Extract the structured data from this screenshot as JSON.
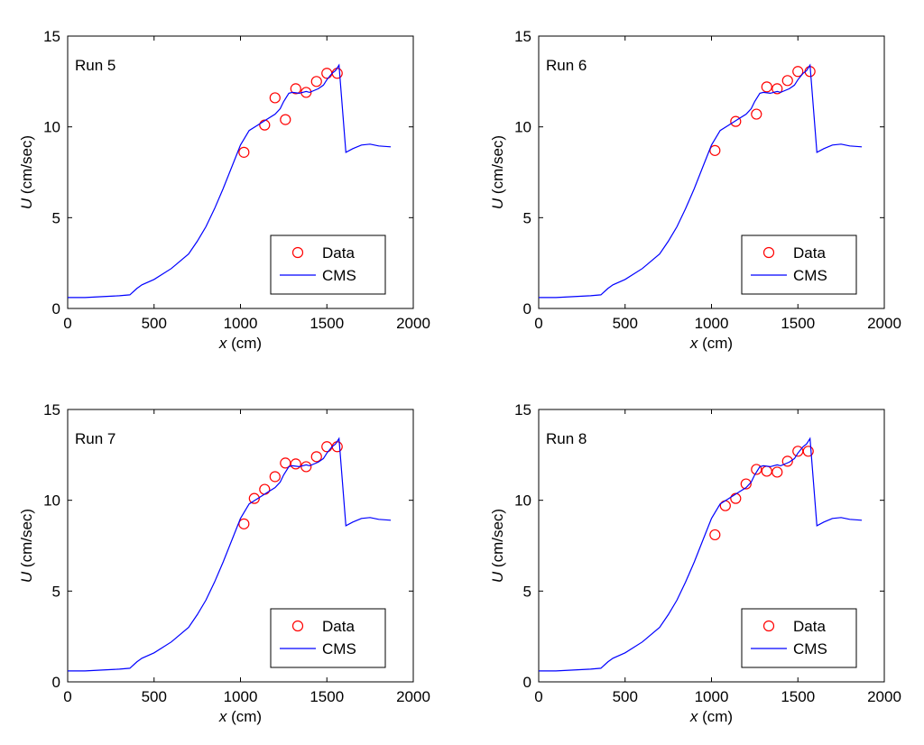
{
  "legend": {
    "data_label": "Data",
    "cms_label": "CMS"
  },
  "axis": {
    "xlabel_var": "x",
    "xlabel_unit": " (cm)",
    "ylabel_var": "U",
    "ylabel_unit": " (cm/sec)"
  },
  "colors": {
    "data": "#ff0000",
    "cms": "#0000ff",
    "axes": "#000000",
    "background": "#ffffff"
  },
  "chart_data": [
    {
      "type": "line",
      "title": "Run 5",
      "xlim": [
        0,
        2000
      ],
      "ylim": [
        0,
        15
      ],
      "xticks": [
        0,
        500,
        1000,
        1500,
        2000
      ],
      "yticks": [
        0,
        5,
        10,
        15
      ],
      "xlabel": "x (cm)",
      "ylabel": "U (cm/sec)",
      "grid": false,
      "legend_position": "bottom-right",
      "series": [
        {
          "name": "Data",
          "style": "markers",
          "marker": "open-circle",
          "x": [
            1020,
            1140,
            1200,
            1260,
            1320,
            1380,
            1440,
            1500,
            1560
          ],
          "y": [
            8.6,
            10.1,
            11.6,
            10.4,
            12.1,
            11.9,
            12.5,
            12.95,
            12.95
          ]
        },
        {
          "name": "CMS",
          "style": "line",
          "x": [
            0,
            100,
            200,
            300,
            360,
            400,
            430,
            500,
            600,
            700,
            750,
            800,
            850,
            900,
            950,
            1000,
            1050,
            1100,
            1150,
            1200,
            1230,
            1250,
            1280,
            1300,
            1340,
            1380,
            1400,
            1450,
            1480,
            1500,
            1530,
            1550,
            1570,
            1590,
            1610,
            1650,
            1700,
            1750,
            1800,
            1870
          ],
          "y": [
            0.6,
            0.6,
            0.65,
            0.7,
            0.75,
            1.1,
            1.3,
            1.6,
            2.2,
            3.0,
            3.7,
            4.5,
            5.5,
            6.6,
            7.8,
            9.0,
            9.8,
            10.1,
            10.4,
            10.7,
            11.0,
            11.4,
            11.85,
            11.9,
            11.85,
            11.95,
            11.9,
            12.1,
            12.3,
            12.6,
            12.95,
            13.1,
            13.4,
            11.0,
            8.6,
            8.8,
            9.0,
            9.05,
            8.95,
            8.9
          ]
        }
      ]
    },
    {
      "type": "line",
      "title": "Run 6",
      "xlim": [
        0,
        2000
      ],
      "ylim": [
        0,
        15
      ],
      "xticks": [
        0,
        500,
        1000,
        1500,
        2000
      ],
      "yticks": [
        0,
        5,
        10,
        15
      ],
      "xlabel": "x (cm)",
      "ylabel": "U (cm/sec)",
      "grid": false,
      "legend_position": "bottom-right",
      "series": [
        {
          "name": "Data",
          "style": "markers",
          "marker": "open-circle",
          "x": [
            1020,
            1140,
            1260,
            1320,
            1380,
            1440,
            1500,
            1570
          ],
          "y": [
            8.7,
            10.3,
            10.7,
            12.2,
            12.1,
            12.55,
            13.05,
            13.05
          ]
        },
        {
          "name": "CMS",
          "style": "line",
          "x": [
            0,
            100,
            200,
            300,
            360,
            400,
            430,
            500,
            600,
            700,
            750,
            800,
            850,
            900,
            950,
            1000,
            1050,
            1100,
            1150,
            1200,
            1230,
            1250,
            1280,
            1300,
            1340,
            1380,
            1400,
            1450,
            1480,
            1500,
            1530,
            1550,
            1570,
            1590,
            1610,
            1650,
            1700,
            1750,
            1800,
            1870
          ],
          "y": [
            0.6,
            0.6,
            0.65,
            0.7,
            0.75,
            1.1,
            1.3,
            1.6,
            2.2,
            3.0,
            3.7,
            4.5,
            5.5,
            6.6,
            7.8,
            9.0,
            9.8,
            10.1,
            10.4,
            10.7,
            11.0,
            11.4,
            11.85,
            11.9,
            11.85,
            11.95,
            11.9,
            12.1,
            12.3,
            12.6,
            12.95,
            13.1,
            13.4,
            11.0,
            8.6,
            8.8,
            9.0,
            9.05,
            8.95,
            8.9
          ]
        }
      ]
    },
    {
      "type": "line",
      "title": "Run 7",
      "xlim": [
        0,
        2000
      ],
      "ylim": [
        0,
        15
      ],
      "xticks": [
        0,
        500,
        1000,
        1500,
        2000
      ],
      "yticks": [
        0,
        5,
        10,
        15
      ],
      "xlabel": "x (cm)",
      "ylabel": "U (cm/sec)",
      "grid": false,
      "legend_position": "bottom-right",
      "series": [
        {
          "name": "Data",
          "style": "markers",
          "marker": "open-circle",
          "x": [
            1020,
            1080,
            1140,
            1200,
            1260,
            1320,
            1380,
            1440,
            1500,
            1560
          ],
          "y": [
            8.7,
            10.1,
            10.6,
            11.3,
            12.05,
            12.0,
            11.85,
            12.4,
            12.95,
            12.95
          ]
        },
        {
          "name": "CMS",
          "style": "line",
          "x": [
            0,
            100,
            200,
            300,
            360,
            400,
            430,
            500,
            600,
            700,
            750,
            800,
            850,
            900,
            950,
            1000,
            1050,
            1100,
            1150,
            1200,
            1230,
            1250,
            1280,
            1300,
            1340,
            1380,
            1400,
            1450,
            1480,
            1500,
            1530,
            1550,
            1570,
            1590,
            1610,
            1650,
            1700,
            1750,
            1800,
            1870
          ],
          "y": [
            0.6,
            0.6,
            0.65,
            0.7,
            0.75,
            1.1,
            1.3,
            1.6,
            2.2,
            3.0,
            3.7,
            4.5,
            5.5,
            6.6,
            7.8,
            9.0,
            9.8,
            10.1,
            10.4,
            10.7,
            11.0,
            11.4,
            11.85,
            11.9,
            11.85,
            11.95,
            11.9,
            12.1,
            12.3,
            12.6,
            12.95,
            13.1,
            13.4,
            11.0,
            8.6,
            8.8,
            9.0,
            9.05,
            8.95,
            8.9
          ]
        }
      ]
    },
    {
      "type": "line",
      "title": "Run 8",
      "xlim": [
        0,
        2000
      ],
      "ylim": [
        0,
        15
      ],
      "xticks": [
        0,
        500,
        1000,
        1500,
        2000
      ],
      "yticks": [
        0,
        5,
        10,
        15
      ],
      "xlabel": "x (cm)",
      "ylabel": "U (cm/sec)",
      "grid": false,
      "legend_position": "bottom-right",
      "series": [
        {
          "name": "Data",
          "style": "markers",
          "marker": "open-circle",
          "x": [
            1020,
            1080,
            1140,
            1200,
            1260,
            1320,
            1380,
            1440,
            1500,
            1560
          ],
          "y": [
            8.1,
            9.7,
            10.1,
            10.9,
            11.7,
            11.6,
            11.55,
            12.15,
            12.7,
            12.7
          ]
        },
        {
          "name": "CMS",
          "style": "line",
          "x": [
            0,
            100,
            200,
            300,
            360,
            400,
            430,
            500,
            600,
            700,
            750,
            800,
            850,
            900,
            950,
            1000,
            1050,
            1100,
            1150,
            1200,
            1230,
            1250,
            1280,
            1300,
            1340,
            1380,
            1400,
            1450,
            1480,
            1500,
            1530,
            1550,
            1570,
            1590,
            1610,
            1650,
            1700,
            1750,
            1800,
            1870
          ],
          "y": [
            0.6,
            0.6,
            0.65,
            0.7,
            0.75,
            1.1,
            1.3,
            1.6,
            2.2,
            3.0,
            3.7,
            4.5,
            5.5,
            6.6,
            7.8,
            9.0,
            9.8,
            10.1,
            10.4,
            10.7,
            11.0,
            11.4,
            11.85,
            11.9,
            11.85,
            11.95,
            11.9,
            12.1,
            12.3,
            12.6,
            12.95,
            13.1,
            13.4,
            11.0,
            8.6,
            8.8,
            9.0,
            9.05,
            8.95,
            8.9
          ]
        }
      ]
    }
  ]
}
